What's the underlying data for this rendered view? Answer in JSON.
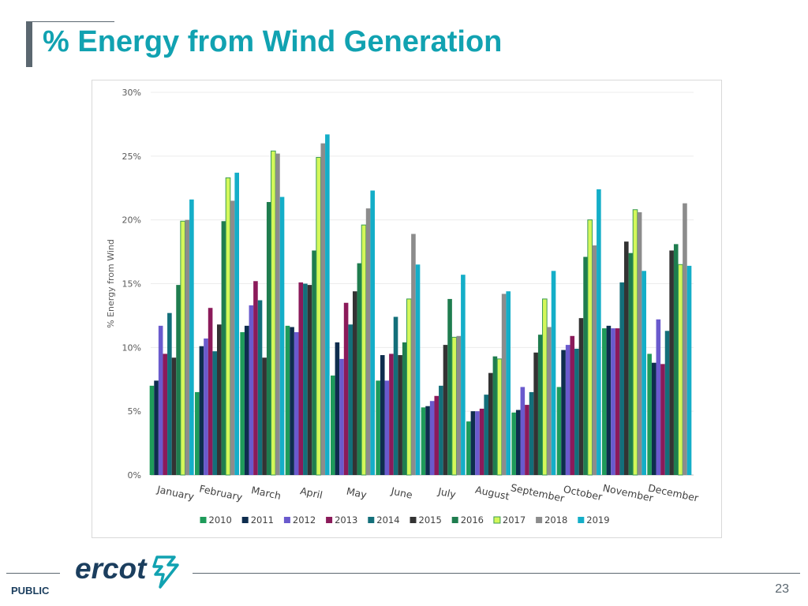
{
  "slide": {
    "title": "% Energy from Wind Generation",
    "footer_label": "PUBLIC",
    "page_number": "23",
    "logo_text": "ercot"
  },
  "chart_data": {
    "type": "bar",
    "title": "",
    "xlabel": "",
    "ylabel": "% Energy from Wind",
    "ylim": [
      0,
      30
    ],
    "yticks": [
      0,
      5,
      10,
      15,
      20,
      25,
      30
    ],
    "ytick_labels": [
      "0%",
      "5%",
      "10%",
      "15%",
      "20%",
      "25%",
      "30%"
    ],
    "grid": true,
    "legend_position": "bottom",
    "categories": [
      "January",
      "February",
      "March",
      "April",
      "May",
      "June",
      "July",
      "August",
      "September",
      "October",
      "November",
      "December"
    ],
    "series": [
      {
        "name": "2010",
        "color": "#1e9b5a",
        "values": [
          7.0,
          6.5,
          11.2,
          11.7,
          7.8,
          7.4,
          5.3,
          4.2,
          4.9,
          6.9,
          11.5,
          9.5
        ]
      },
      {
        "name": "2011",
        "color": "#0e2d4e",
        "values": [
          7.4,
          10.1,
          11.7,
          11.6,
          10.4,
          9.4,
          5.4,
          5.0,
          5.1,
          9.8,
          11.7,
          8.8
        ]
      },
      {
        "name": "2012",
        "color": "#6a5acd",
        "values": [
          11.7,
          10.7,
          13.3,
          11.2,
          9.1,
          7.4,
          5.8,
          5.0,
          6.9,
          10.2,
          11.5,
          12.2
        ]
      },
      {
        "name": "2013",
        "color": "#8b1a5a",
        "values": [
          9.5,
          13.1,
          15.2,
          15.1,
          13.5,
          9.5,
          6.2,
          5.2,
          5.5,
          10.9,
          11.5,
          8.7
        ]
      },
      {
        "name": "2014",
        "color": "#136f7a",
        "values": [
          12.7,
          9.7,
          13.7,
          15.0,
          11.8,
          12.4,
          7.0,
          6.3,
          6.5,
          9.9,
          15.1,
          11.3
        ]
      },
      {
        "name": "2015",
        "color": "#333333",
        "values": [
          9.2,
          11.8,
          9.2,
          14.9,
          14.4,
          9.4,
          10.2,
          8.0,
          9.6,
          12.3,
          18.3,
          17.6
        ]
      },
      {
        "name": "2016",
        "color": "#1f7d4f",
        "values": [
          14.9,
          19.9,
          21.4,
          17.6,
          16.6,
          10.4,
          13.8,
          9.3,
          11.0,
          17.1,
          17.4,
          18.1
        ]
      },
      {
        "name": "2017",
        "color": "#d4f75a",
        "values": [
          19.9,
          23.3,
          25.4,
          24.9,
          19.6,
          13.8,
          10.8,
          9.1,
          13.8,
          20.0,
          20.8,
          16.5
        ]
      },
      {
        "name": "2018",
        "color": "#8c8c8c",
        "values": [
          20.0,
          21.5,
          25.2,
          26.0,
          20.9,
          18.9,
          10.9,
          14.2,
          11.6,
          18.0,
          20.6,
          21.3
        ]
      },
      {
        "name": "2019",
        "color": "#14aec8",
        "values": [
          21.6,
          23.7,
          21.8,
          26.7,
          22.3,
          16.5,
          15.7,
          14.4,
          16.0,
          22.4,
          16.0,
          16.4
        ]
      }
    ]
  }
}
